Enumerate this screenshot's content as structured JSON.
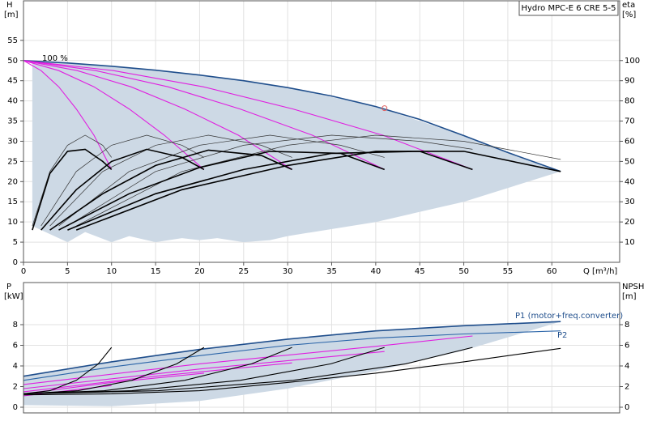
{
  "chart_data": [
    {
      "type": "line",
      "title": "Hydro MPC-E 6 CRE 5-5",
      "ylabel": "H",
      "yunit": "[m]",
      "y2label": "eta",
      "y2unit": "[%]",
      "xlabel": "Q [m³/h]",
      "annotation": "100 %",
      "xlim": [
        0,
        67.7
      ],
      "ylim": [
        0,
        64.8
      ],
      "y2lim": [
        0,
        129.6
      ],
      "xticks": [
        0,
        5,
        10,
        15,
        20,
        25,
        30,
        35,
        40,
        45,
        50,
        55,
        60
      ],
      "yticks": [
        0,
        5,
        10,
        15,
        20,
        25,
        30,
        35,
        40,
        45,
        50,
        55
      ],
      "y2ticks": [
        10,
        20,
        30,
        40,
        50,
        60,
        70,
        80,
        90,
        100
      ],
      "grid": true,
      "series": [
        {
          "color": "#cdd9e5",
          "fill": true,
          "x": [
            1,
            10,
            20,
            30,
            40,
            50,
            61,
            50,
            40,
            30,
            28,
            25,
            22,
            20,
            18,
            15,
            12,
            10,
            7,
            5,
            3,
            1
          ],
          "values": [
            50,
            48.6,
            46.4,
            43.3,
            38.6,
            31.4,
            22.5,
            15,
            10,
            6.5,
            5.5,
            5,
            6,
            5.5,
            6,
            5,
            6.5,
            5,
            7.5,
            5,
            7,
            9
          ]
        },
        {
          "color": "#1f4e8c",
          "style": "thick",
          "x": [
            0,
            5,
            10,
            15,
            20,
            25,
            30,
            35,
            40,
            45,
            50,
            55,
            61
          ],
          "values": [
            50,
            49.4,
            48.6,
            47.6,
            46.4,
            45,
            43.3,
            41.2,
            38.6,
            35.4,
            31.4,
            27.2,
            22.5
          ]
        },
        {
          "color": "#e020e0",
          "style": "thin",
          "x": [
            0,
            2,
            4,
            6,
            8,
            10
          ],
          "values": [
            50,
            47.5,
            43.5,
            38,
            31.5,
            23
          ]
        },
        {
          "color": "#e020e0",
          "style": "thin",
          "x": [
            0,
            4,
            8,
            12,
            16,
            20.5
          ],
          "values": [
            50,
            47.5,
            43.5,
            38,
            31.5,
            23
          ]
        },
        {
          "color": "#e020e0",
          "style": "thin",
          "x": [
            0,
            6.1,
            12.2,
            18.3,
            24.4,
            30.5
          ],
          "values": [
            50,
            47.5,
            43.5,
            38,
            31.5,
            23
          ]
        },
        {
          "color": "#e020e0",
          "style": "thin",
          "x": [
            0,
            8.2,
            16.4,
            24.6,
            32.8,
            41
          ],
          "values": [
            50,
            47.5,
            43.5,
            38,
            31.5,
            23
          ]
        },
        {
          "color": "#e020e0",
          "style": "thin",
          "x": [
            0,
            10.2,
            20.4,
            30.6,
            40.8,
            51
          ],
          "values": [
            50,
            47.5,
            43.5,
            38,
            31.5,
            23
          ]
        },
        {
          "color": "#333333",
          "style": "hair",
          "axis": "y2",
          "x": [
            1,
            3,
            5,
            7,
            9,
            10
          ],
          "values": [
            18,
            45,
            58,
            63,
            58,
            52
          ]
        },
        {
          "color": "#333333",
          "style": "hair",
          "axis": "y2",
          "x": [
            2,
            6,
            10,
            14,
            18,
            20.5
          ],
          "values": [
            18,
            45,
            58,
            63,
            58,
            52
          ]
        },
        {
          "color": "#333333",
          "style": "hair",
          "axis": "y2",
          "x": [
            3,
            9,
            15,
            21,
            27,
            30.5
          ],
          "values": [
            18,
            45,
            58,
            63,
            58,
            52
          ]
        },
        {
          "color": "#333333",
          "style": "hair",
          "axis": "y2",
          "x": [
            4,
            12,
            20,
            28,
            36,
            41
          ],
          "values": [
            18,
            45,
            58,
            63,
            58,
            52
          ]
        },
        {
          "color": "#333333",
          "style": "hair",
          "axis": "y2",
          "x": [
            5,
            15,
            25,
            35,
            45,
            51
          ],
          "values": [
            18,
            45,
            58,
            63,
            60,
            56
          ]
        },
        {
          "color": "#333333",
          "style": "hair",
          "axis": "y2",
          "x": [
            6,
            18,
            30,
            40,
            50,
            61
          ],
          "values": [
            18,
            45,
            58,
            63,
            60,
            51
          ]
        },
        {
          "color": "#000000",
          "style": "thick",
          "x": [
            1,
            3,
            5,
            7,
            9,
            10
          ],
          "values": [
            8,
            22,
            27.5,
            28,
            25,
            23
          ]
        },
        {
          "color": "#000000",
          "style": "thick",
          "x": [
            2,
            6,
            10,
            14,
            18,
            20.5
          ],
          "values": [
            8,
            18,
            25,
            28,
            26,
            23
          ]
        },
        {
          "color": "#000000",
          "style": "thick",
          "x": [
            3,
            9,
            15,
            21,
            27,
            30.5
          ],
          "values": [
            8,
            17,
            24,
            27.8,
            26.5,
            23
          ]
        },
        {
          "color": "#000000",
          "style": "thick",
          "x": [
            4,
            12,
            20,
            28,
            36,
            41
          ],
          "values": [
            8,
            17,
            23.5,
            27.5,
            27,
            23
          ]
        },
        {
          "color": "#000000",
          "style": "thick",
          "x": [
            5,
            15,
            25,
            35,
            45,
            51
          ],
          "values": [
            8,
            17,
            23,
            27,
            27.5,
            23
          ]
        },
        {
          "color": "#000000",
          "style": "thick",
          "x": [
            6,
            18,
            30,
            40,
            50,
            61
          ],
          "values": [
            8,
            18,
            24,
            27.5,
            27.5,
            22.5
          ]
        }
      ],
      "points": {
        "color": "#e06060",
        "x": [
          41
        ],
        "values": [
          38.2
        ]
      }
    },
    {
      "type": "line",
      "ylabel": "P",
      "yunit": "[kW]",
      "y2label": "NPSH",
      "y2unit": "[m]",
      "xlim": [
        0,
        67.7
      ],
      "ylim": [
        -0.55,
        12.08
      ],
      "y2lim": [
        -0.55,
        12.08
      ],
      "xticks": [
        0,
        5,
        10,
        15,
        20,
        25,
        30,
        35,
        40,
        45,
        50,
        55,
        60
      ],
      "yticks": [
        0,
        2,
        4,
        6,
        8
      ],
      "y2ticks": [
        0,
        2,
        4,
        6,
        8
      ],
      "grid": true,
      "series": [
        {
          "color": "#cdd9e5",
          "fill": true,
          "x": [
            0,
            10,
            20,
            30,
            40,
            50,
            61,
            50,
            40,
            30,
            20,
            10,
            0
          ],
          "values": [
            3.0,
            4.4,
            5.6,
            6.6,
            7.4,
            7.9,
            8.3,
            5.5,
            3.5,
            1.8,
            0.6,
            0.1,
            0.2
          ]
        },
        {
          "name": "P1 (motor+freq.converter)",
          "color": "#1f4e8c",
          "style": "thick",
          "x": [
            0,
            10,
            20,
            30,
            40,
            50,
            61
          ],
          "values": [
            3.0,
            4.4,
            5.6,
            6.6,
            7.4,
            7.9,
            8.3
          ]
        },
        {
          "name": "P2",
          "color": "#2a64a8",
          "style": "thin",
          "x": [
            0,
            10,
            20,
            30,
            40,
            50,
            61
          ],
          "values": [
            2.6,
            3.9,
            5.0,
            6.0,
            6.7,
            7.1,
            7.4
          ]
        },
        {
          "color": "#e020e0",
          "style": "thin",
          "x": [
            0,
            20,
            40,
            51
          ],
          "values": [
            2.2,
            4.2,
            5.9,
            6.9
          ]
        },
        {
          "color": "#e020e0",
          "style": "thin",
          "x": [
            0,
            20,
            41
          ],
          "values": [
            1.8,
            3.7,
            5.4
          ]
        },
        {
          "color": "#e020e0",
          "style": "thin",
          "x": [
            0,
            15,
            30.5
          ],
          "values": [
            1.5,
            3.0,
            4.3
          ]
        },
        {
          "color": "#e020e0",
          "style": "thin",
          "x": [
            0,
            10,
            20.5
          ],
          "values": [
            1.3,
            2.4,
            3.3
          ]
        },
        {
          "color": "#e020e0",
          "style": "thin",
          "x": [
            0,
            5,
            10
          ],
          "values": [
            1.1,
            1.6,
            2.1
          ]
        },
        {
          "color": "#000000",
          "style": "thin",
          "x": [
            0,
            3,
            6,
            8.5,
            10
          ],
          "values": [
            1.3,
            1.6,
            2.6,
            4.2,
            5.8
          ]
        },
        {
          "color": "#000000",
          "style": "thin",
          "x": [
            0,
            6.2,
            12.3,
            17.4,
            20.5
          ],
          "values": [
            1.3,
            1.6,
            2.6,
            4.2,
            5.8
          ]
        },
        {
          "color": "#000000",
          "style": "thin",
          "x": [
            0,
            9.2,
            18.3,
            25.9,
            30.5
          ],
          "values": [
            1.3,
            1.6,
            2.6,
            4.2,
            5.8
          ]
        },
        {
          "color": "#000000",
          "style": "thin",
          "x": [
            0,
            12.3,
            24.6,
            34.9,
            41
          ],
          "values": [
            1.3,
            1.6,
            2.6,
            4.2,
            5.8
          ]
        },
        {
          "color": "#000000",
          "style": "thin",
          "x": [
            0,
            15.3,
            30.6,
            43.4,
            51
          ],
          "values": [
            1.3,
            1.6,
            2.6,
            4.2,
            5.8
          ]
        },
        {
          "color": "#000000",
          "style": "thin",
          "axis": "y2",
          "x": [
            0,
            10,
            20,
            30,
            40,
            50,
            61
          ],
          "values": [
            1.2,
            1.3,
            1.6,
            2.4,
            3.3,
            4.4,
            5.7
          ]
        }
      ]
    }
  ]
}
